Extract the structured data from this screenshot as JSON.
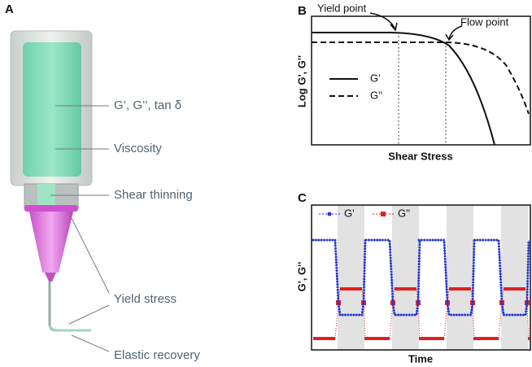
{
  "panel_a": {
    "label": "A",
    "annotations": [
      "G’, G’’, tan δ",
      "Viscosity",
      "Shear thinning",
      "Yield stress",
      "Elastic recovery"
    ]
  },
  "panel_b": {
    "label": "B",
    "x_label": "Shear Stress",
    "y_label": "Log G', G''",
    "annotations": [
      "Yield point",
      "Flow point"
    ],
    "legend": [
      "G'",
      "G''"
    ]
  },
  "panel_c": {
    "label": "C",
    "x_label": "Time",
    "y_label": "G', G''",
    "legend": [
      "G'",
      "G''"
    ]
  }
}
